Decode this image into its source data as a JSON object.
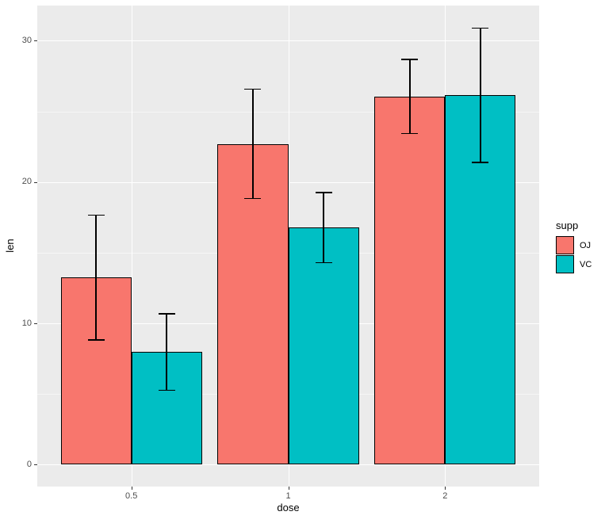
{
  "figure": {
    "background": "#FFFFFF",
    "panel_background": "#EBEBEB",
    "grid_major_color": "#FFFFFF",
    "grid_minor_color": "rgba(255,255,255,0.55)",
    "tick_mark_color": "#333333",
    "tick_label_color": "#4D4D4D",
    "axis_title_color": "#000000"
  },
  "chart_data": {
    "type": "bar",
    "title": "",
    "xlabel": "dose",
    "ylabel": "len",
    "categories": [
      "0.5",
      "1",
      "2"
    ],
    "series": [
      {
        "name": "OJ",
        "color": "#F8766D",
        "values": [
          13.23,
          22.7,
          26.06
        ],
        "sd": [
          4.46,
          3.91,
          2.66
        ]
      },
      {
        "name": "VC",
        "color": "#00BFC4",
        "values": [
          7.98,
          16.77,
          26.14
        ],
        "sd": [
          2.75,
          2.52,
          4.8
        ]
      }
    ],
    "error_bars": "mean plus-minus sd",
    "y_major_ticks": [
      0,
      10,
      20,
      30
    ],
    "y_minor_ticks": [
      5,
      15,
      25
    ],
    "y_tick_labels": [
      "0",
      "10",
      "20",
      "30"
    ],
    "ylim": [
      -1.55,
      32.49
    ],
    "bar_border_color": "#000000",
    "errorbar_color": "#000000",
    "grid": "horizontal major+minor, vertical major at category centers",
    "legend": {
      "title": "supp",
      "entries": [
        "OJ",
        "VC"
      ],
      "position": "right"
    }
  }
}
